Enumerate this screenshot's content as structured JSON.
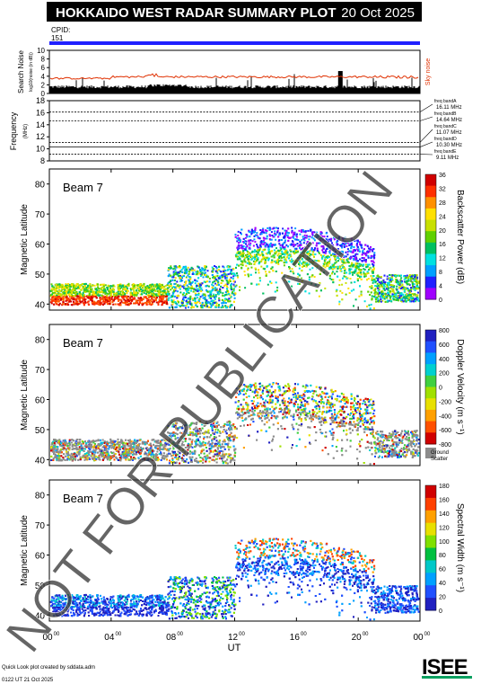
{
  "header": {
    "title": "HOKKAIDO WEST RADAR SUMMARY PLOT",
    "date": "20 Oct 2025",
    "cpid_label": "CPID:",
    "cpid_value": "151"
  },
  "colors": {
    "title_bg": "#000000",
    "cpid_bar": "#2020ff",
    "noise_line": "#e03000",
    "watermark": "#3a3a3a"
  },
  "noise_panel": {
    "ylabel": "Search Noise",
    "ylabel_sub": "log10(noise (in dB))",
    "right_label": "Sky noise",
    "ticks": [
      "0",
      "2",
      "4",
      "6",
      "8",
      "10"
    ],
    "ylim": [
      0,
      10
    ]
  },
  "freq_panel": {
    "ylabel": "Frequency",
    "ylabel_sub": "(MHz)",
    "ticks": [
      "8",
      "10",
      "12",
      "14",
      "16",
      "18"
    ],
    "ylim": [
      8,
      18
    ],
    "bands": [
      {
        "label": "freq bandA",
        "value": "16.11 MHz",
        "mhz": 16.11
      },
      {
        "label": "freq bandB",
        "value": "14.64 MHz",
        "mhz": 14.64
      },
      {
        "label": "freq bandC",
        "value": "11.07 MHz",
        "mhz": 11.07
      },
      {
        "label": "freq bandD",
        "value": "10.30 MHz",
        "mhz": 10.3
      },
      {
        "label": "freq bandE",
        "value": "9.11 MHz",
        "mhz": 9.11
      }
    ]
  },
  "chart_data": [
    {
      "type": "heatmap",
      "beam_label": "Beam  7",
      "ylabel": "Magnetic Latitude",
      "ylim": [
        38,
        85
      ],
      "yticks": [
        "40",
        "50",
        "60",
        "70",
        "80"
      ],
      "colorbar_label": "Backscatter Power (dB)",
      "colorbar_ticks": [
        "0",
        "4",
        "8",
        "12",
        "16",
        "20",
        "24",
        "28",
        "32",
        "36"
      ],
      "colorbar_range": [
        0,
        36
      ]
    },
    {
      "type": "heatmap",
      "beam_label": "Beam  7",
      "ylabel": "Magnetic Latitude",
      "ylim": [
        38,
        85
      ],
      "yticks": [
        "40",
        "50",
        "60",
        "70",
        "80"
      ],
      "colorbar_label": "Doppler Velocity (m s⁻¹)",
      "colorbar_ticks": [
        "800",
        "600",
        "400",
        "200",
        "0",
        "-200",
        "-400",
        "-600",
        "-800"
      ],
      "colorbar_range": [
        -800,
        800
      ],
      "ground_label": "Ground",
      "ground_label2": "Scatter"
    },
    {
      "type": "heatmap",
      "beam_label": "Beam  7",
      "ylabel": "Magnetic Latitude",
      "ylim": [
        38,
        85
      ],
      "yticks": [
        "40",
        "50",
        "60",
        "70",
        "80"
      ],
      "colorbar_label": "Spectral Width (m s⁻¹)",
      "colorbar_ticks": [
        "0",
        "20",
        "40",
        "60",
        "80",
        "100",
        "120",
        "140",
        "160",
        "180"
      ],
      "colorbar_range": [
        0,
        180
      ]
    }
  ],
  "x_axis": {
    "label": "UT",
    "ticks": [
      {
        "h": "00",
        "m": "00"
      },
      {
        "h": "04",
        "m": "00"
      },
      {
        "h": "08",
        "m": "00"
      },
      {
        "h": "12",
        "m": "00"
      },
      {
        "h": "16",
        "m": "00"
      },
      {
        "h": "20",
        "m": "00"
      },
      {
        "h": "00",
        "m": "00"
      }
    ]
  },
  "footer": {
    "line1": "Quick Look plot created by sddata.adm",
    "line2": "0122 UT 21 Oct 2025",
    "logo_text": "ISEE"
  },
  "watermark": "NOT FOR PUBLICATION"
}
